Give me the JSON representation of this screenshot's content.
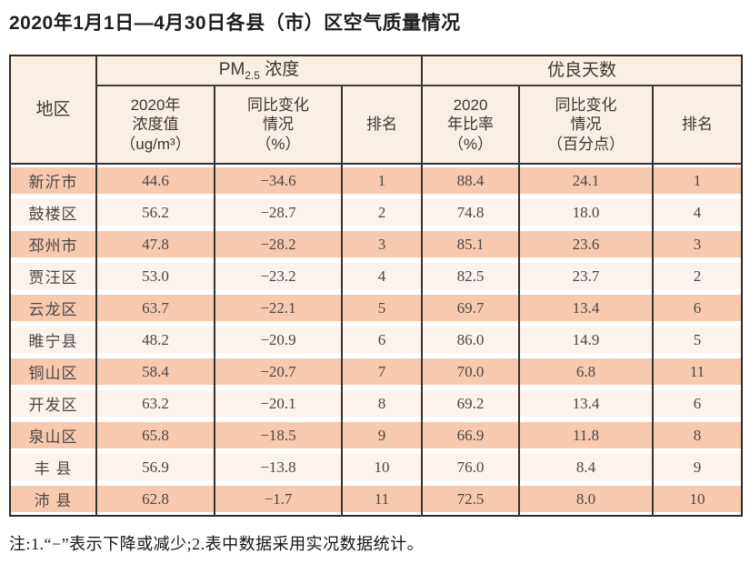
{
  "title": "2020年1月1日—4月30日各县（市）区空气质量情况",
  "table": {
    "headers": {
      "region": "地区",
      "pm_group": {
        "pre": "PM",
        "sub": "2.5",
        "post": " 浓度"
      },
      "good_group": "优良天数",
      "pm_value": "2020年\n浓度值\n（ug/m³）",
      "pm_change": "同比变化\n情况\n（%）",
      "pm_rank": "排名",
      "good_ratio": "2020\n年比率\n（%）",
      "good_change": "同比变化\n情况\n（百分点）",
      "good_rank": "排名"
    },
    "rows": [
      {
        "region": "新沂市",
        "pm_value": "44.6",
        "pm_change": "−34.6",
        "pm_rank": "1",
        "good_ratio": "88.4",
        "good_change": "24.1",
        "good_rank": "1"
      },
      {
        "region": "鼓楼区",
        "pm_value": "56.2",
        "pm_change": "−28.7",
        "pm_rank": "2",
        "good_ratio": "74.8",
        "good_change": "18.0",
        "good_rank": "4"
      },
      {
        "region": "邳州市",
        "pm_value": "47.8",
        "pm_change": "−28.2",
        "pm_rank": "3",
        "good_ratio": "85.1",
        "good_change": "23.6",
        "good_rank": "3"
      },
      {
        "region": "贾汪区",
        "pm_value": "53.0",
        "pm_change": "−23.2",
        "pm_rank": "4",
        "good_ratio": "82.5",
        "good_change": "23.7",
        "good_rank": "2"
      },
      {
        "region": "云龙区",
        "pm_value": "63.7",
        "pm_change": "−22.1",
        "pm_rank": "5",
        "good_ratio": "69.7",
        "good_change": "13.4",
        "good_rank": "6"
      },
      {
        "region": "睢宁县",
        "pm_value": "48.2",
        "pm_change": "−20.9",
        "pm_rank": "6",
        "good_ratio": "86.0",
        "good_change": "14.9",
        "good_rank": "5"
      },
      {
        "region": "铜山区",
        "pm_value": "58.4",
        "pm_change": "−20.7",
        "pm_rank": "7",
        "good_ratio": "70.0",
        "good_change": "6.8",
        "good_rank": "11"
      },
      {
        "region": "开发区",
        "pm_value": "63.2",
        "pm_change": "−20.1",
        "pm_rank": "8",
        "good_ratio": "69.2",
        "good_change": "13.4",
        "good_rank": "6"
      },
      {
        "region": "泉山区",
        "pm_value": "65.8",
        "pm_change": "−18.5",
        "pm_rank": "9",
        "good_ratio": "66.9",
        "good_change": "11.8",
        "good_rank": "8"
      },
      {
        "region": "丰 县",
        "pm_value": "56.9",
        "pm_change": "−13.8",
        "pm_rank": "10",
        "good_ratio": "76.0",
        "good_change": "8.4",
        "good_rank": "9"
      },
      {
        "region": "沛 县",
        "pm_value": "62.8",
        "pm_change": "−1.7",
        "pm_rank": "11",
        "good_ratio": "72.5",
        "good_change": "8.0",
        "good_rank": "10"
      }
    ]
  },
  "note": "注:1.“−”表示下降或减少;2.表中数据采用实况数据统计。",
  "colors": {
    "row_band_odd": "#f7cab0",
    "row_band_even": "#fdf2ec",
    "header_background": "#fbeee2",
    "table_border": "#38322e",
    "title_text": "#1e1e1e",
    "cell_text": "#4d4643"
  }
}
